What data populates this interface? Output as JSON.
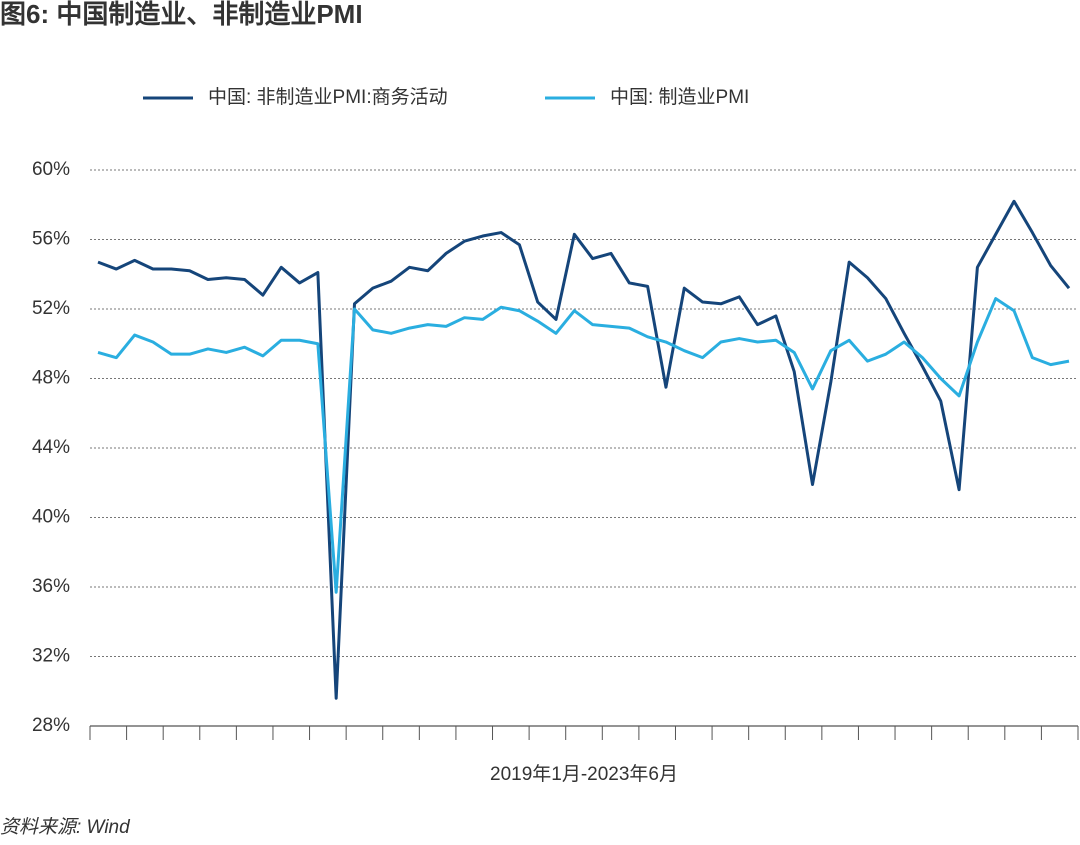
{
  "chart_data": {
    "type": "line",
    "title": "图6: 中国制造业、非制造业PMI",
    "xlabel": "2019年1月-2023年6月",
    "source": "资料来源: Wind",
    "categories": [
      null,
      null,
      null,
      null,
      null,
      null,
      null,
      null,
      null,
      null,
      null,
      null,
      null,
      null,
      null,
      null,
      null,
      null,
      null,
      null,
      null,
      null,
      null,
      null,
      null,
      null,
      null,
      null,
      null,
      null,
      null,
      null,
      null,
      null,
      null,
      null,
      null,
      null,
      null,
      null,
      null,
      null,
      null,
      null,
      null,
      null,
      null,
      null,
      null,
      null,
      null,
      null,
      null,
      null
    ],
    "series": [
      {
        "name": "中国: 非制造业PMI:商务活动",
        "color": "#15457a",
        "values": [
          54.7,
          54.3,
          54.8,
          54.3,
          54.3,
          54.2,
          53.7,
          53.8,
          53.7,
          52.8,
          54.4,
          53.5,
          54.1,
          29.6,
          52.3,
          53.2,
          53.6,
          54.4,
          54.2,
          55.2,
          55.9,
          56.2,
          56.4,
          55.7,
          52.4,
          51.4,
          56.3,
          54.9,
          55.2,
          53.5,
          53.3,
          47.5,
          53.2,
          52.4,
          52.3,
          52.7,
          51.1,
          51.6,
          48.4,
          41.9,
          47.8,
          54.7,
          53.8,
          52.6,
          50.6,
          48.7,
          46.7,
          41.6,
          54.4,
          56.3,
          58.2,
          56.4,
          54.5,
          53.2
        ]
      },
      {
        "name": "中国: 制造业PMI",
        "color": "#2aaee0",
        "values": [
          49.5,
          49.2,
          50.5,
          50.1,
          49.4,
          49.4,
          49.7,
          49.5,
          49.8,
          49.3,
          50.2,
          50.2,
          50.0,
          35.7,
          52.0,
          50.8,
          50.6,
          50.9,
          51.1,
          51.0,
          51.5,
          51.4,
          52.1,
          51.9,
          51.3,
          50.6,
          51.9,
          51.1,
          51.0,
          50.9,
          50.4,
          50.1,
          49.6,
          49.2,
          50.1,
          50.3,
          50.1,
          50.2,
          49.5,
          47.4,
          49.6,
          50.2,
          49.0,
          49.4,
          50.1,
          49.2,
          48.0,
          47.0,
          50.1,
          52.6,
          51.9,
          49.2,
          48.8,
          49.0
        ]
      }
    ],
    "ylim": [
      28,
      60
    ],
    "yticks": [
      {
        "value": 28,
        "label": "28%"
      },
      {
        "value": 32,
        "label": "32%"
      },
      {
        "value": 36,
        "label": "36%"
      },
      {
        "value": 40,
        "label": "40%"
      },
      {
        "value": 44,
        "label": "44%"
      },
      {
        "value": 48,
        "label": "48%"
      },
      {
        "value": 52,
        "label": "52%"
      },
      {
        "value": 56,
        "label": "56%"
      },
      {
        "value": 60,
        "label": "60%"
      }
    ],
    "grid": true
  }
}
